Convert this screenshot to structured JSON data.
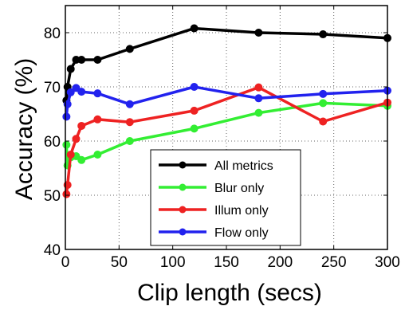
{
  "chart_data": {
    "type": "line",
    "title": "",
    "xlabel": "Clip length  (secs)",
    "ylabel": "Accuracy  (%)",
    "xlim": [
      0,
      300
    ],
    "ylim": [
      40,
      85
    ],
    "xticks": [
      0,
      50,
      100,
      150,
      200,
      250,
      300
    ],
    "yticks": [
      40,
      50,
      60,
      70,
      80
    ],
    "grid": true,
    "legend_position": "lower-center",
    "series": [
      {
        "name": "All metrics",
        "color": "#000000",
        "x": [
          1,
          2,
          5,
          10,
          15,
          30,
          60,
          120,
          180,
          240,
          300
        ],
        "y": [
          67.5,
          70.0,
          73.3,
          75.0,
          75.0,
          75.0,
          77.0,
          80.8,
          80.0,
          79.7,
          79.0
        ]
      },
      {
        "name": "Blur only",
        "color": "#33ee33",
        "x": [
          1,
          2,
          5,
          10,
          15,
          30,
          60,
          120,
          180,
          240,
          300
        ],
        "y": [
          59.3,
          55.5,
          57.0,
          57.2,
          56.5,
          57.5,
          60.0,
          62.3,
          65.2,
          67.0,
          66.5
        ]
      },
      {
        "name": "Illum only",
        "color": "#ee2222",
        "x": [
          1,
          2,
          5,
          10,
          15,
          30,
          60,
          120,
          180,
          240,
          300
        ],
        "y": [
          50.2,
          51.9,
          57.5,
          60.4,
          62.8,
          64.0,
          63.5,
          65.6,
          69.9,
          63.6,
          67.1
        ]
      },
      {
        "name": "Flow only",
        "color": "#2222ee",
        "x": [
          1,
          2,
          5,
          10,
          15,
          30,
          60,
          120,
          180,
          240,
          300
        ],
        "y": [
          64.5,
          66.8,
          69.0,
          69.8,
          69.1,
          68.8,
          66.8,
          70.0,
          67.9,
          68.7,
          69.3
        ]
      }
    ]
  }
}
